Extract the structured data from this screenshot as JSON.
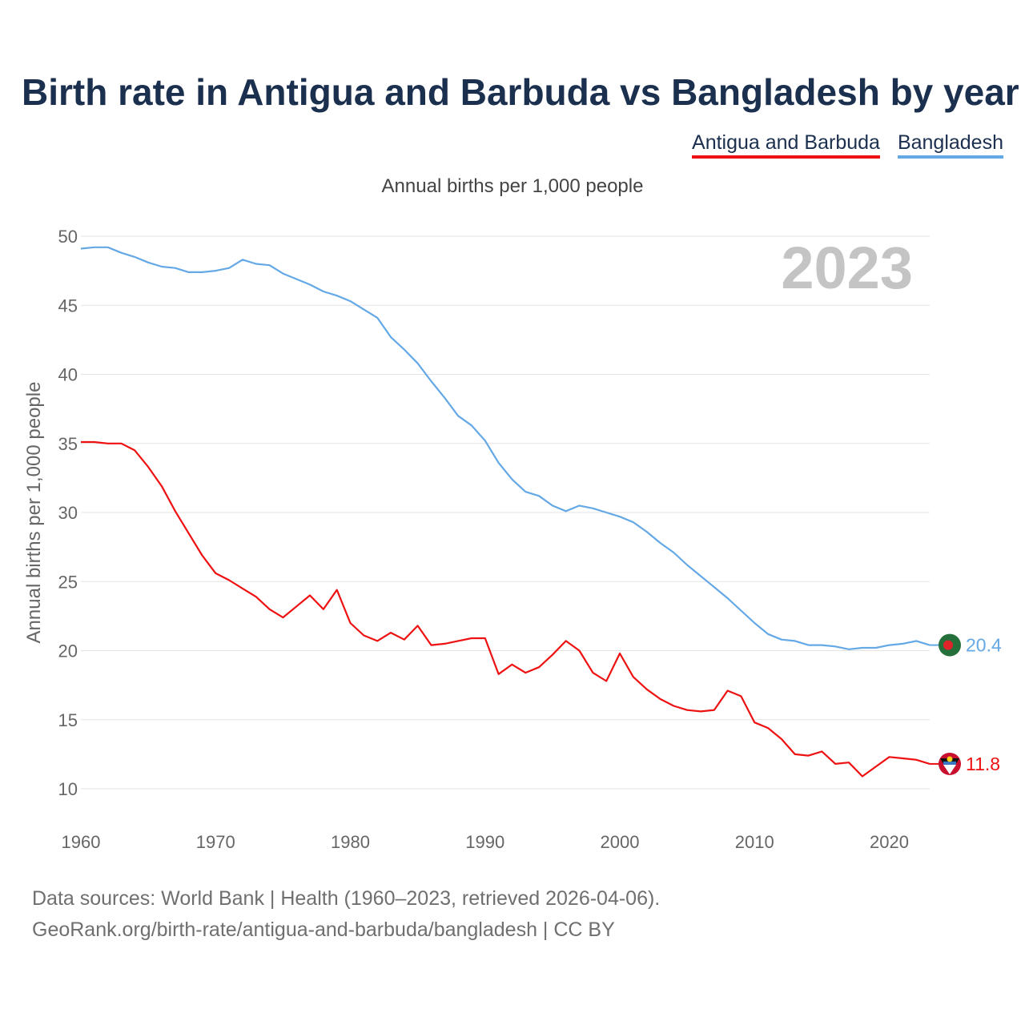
{
  "title": "Birth rate in Antigua and Barbuda vs Bangladesh by year",
  "legend": [
    {
      "label": "Antigua and Barbuda",
      "color": "#ee1111"
    },
    {
      "label": "Bangladesh",
      "color": "#64a8e6"
    }
  ],
  "footer": {
    "line1": "Data sources: World Bank | Health (1960–2023, retrieved 2026-04-06).",
    "line2": "GeoRank.org/birth-rate/antigua-and-barbuda/bangladesh | CC BY"
  },
  "chart_data": {
    "type": "line",
    "subtitle": "Annual births per 1,000 people",
    "ylabel": "Annual births per 1,000 people",
    "xlabel": "",
    "year_watermark": "2023",
    "xlim": [
      1960,
      2023
    ],
    "ylim": [
      10,
      50
    ],
    "xticks": [
      1960,
      1970,
      1980,
      1990,
      2000,
      2010,
      2020
    ],
    "yticks": [
      10,
      15,
      20,
      25,
      30,
      35,
      40,
      45,
      50
    ],
    "grid": true,
    "legend_position": "top-right",
    "x": [
      1960,
      1961,
      1962,
      1963,
      1964,
      1965,
      1966,
      1967,
      1968,
      1969,
      1970,
      1971,
      1972,
      1973,
      1974,
      1975,
      1976,
      1977,
      1978,
      1979,
      1980,
      1981,
      1982,
      1983,
      1984,
      1985,
      1986,
      1987,
      1988,
      1989,
      1990,
      1991,
      1992,
      1993,
      1994,
      1995,
      1996,
      1997,
      1998,
      1999,
      2000,
      2001,
      2002,
      2003,
      2004,
      2005,
      2006,
      2007,
      2008,
      2009,
      2010,
      2011,
      2012,
      2013,
      2014,
      2015,
      2016,
      2017,
      2018,
      2019,
      2020,
      2021,
      2022,
      2023
    ],
    "series": [
      {
        "name": "Antigua and Barbuda",
        "color": "#ee1111",
        "end_label": "11.8",
        "flag": "antigua-and-barbuda-flag",
        "values": [
          35.1,
          35.1,
          35.0,
          35.0,
          34.5,
          33.3,
          31.9,
          30.1,
          28.5,
          26.9,
          25.6,
          25.1,
          24.5,
          23.9,
          23.0,
          22.4,
          23.2,
          24.0,
          23.0,
          24.4,
          22.0,
          21.1,
          20.7,
          21.3,
          20.8,
          21.8,
          20.4,
          20.5,
          20.7,
          20.9,
          20.9,
          18.3,
          19.0,
          18.4,
          18.8,
          19.7,
          20.7,
          20.0,
          18.4,
          17.8,
          19.8,
          18.1,
          17.2,
          16.5,
          16.0,
          15.7,
          15.6,
          15.7,
          17.1,
          16.7,
          14.8,
          14.4,
          13.6,
          12.5,
          12.4,
          12.7,
          11.8,
          11.9,
          10.9,
          11.6,
          12.3,
          12.2,
          12.1,
          11.8
        ]
      },
      {
        "name": "Bangladesh",
        "color": "#64a8e6",
        "end_label": "20.4",
        "flag": "bangladesh-flag",
        "values": [
          49.1,
          49.2,
          49.2,
          48.8,
          48.5,
          48.1,
          47.8,
          47.7,
          47.4,
          47.4,
          47.5,
          47.7,
          48.3,
          48.0,
          47.9,
          47.3,
          46.9,
          46.5,
          46.0,
          45.7,
          45.3,
          44.7,
          44.1,
          42.7,
          41.8,
          40.8,
          39.5,
          38.3,
          37.0,
          36.3,
          35.2,
          33.6,
          32.4,
          31.5,
          31.2,
          30.5,
          30.1,
          30.5,
          30.3,
          30.0,
          29.7,
          29.3,
          28.6,
          27.8,
          27.1,
          26.2,
          25.4,
          24.6,
          23.8,
          22.9,
          22.0,
          21.2,
          20.8,
          20.7,
          20.4,
          20.4,
          20.3,
          20.1,
          20.2,
          20.2,
          20.4,
          20.5,
          20.7,
          20.4
        ]
      }
    ]
  }
}
